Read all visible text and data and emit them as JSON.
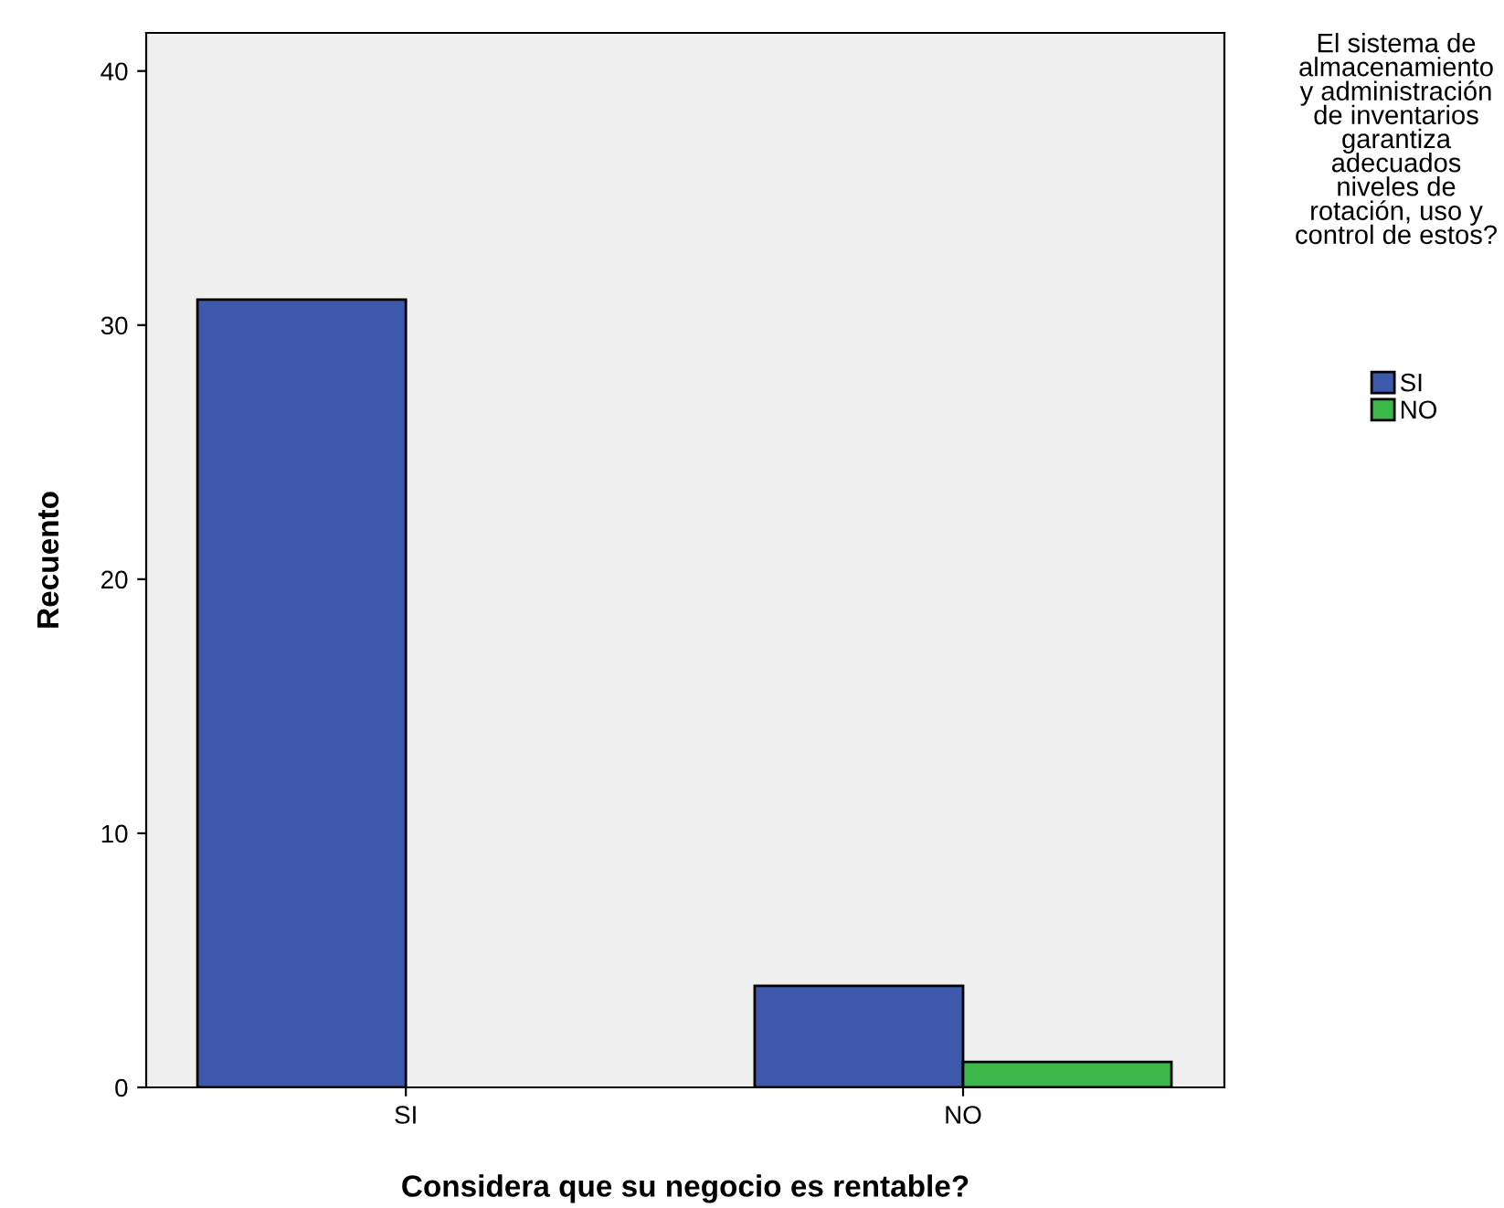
{
  "chart_data": {
    "type": "bar",
    "xlabel": "Considera que su negocio es rentable?",
    "ylabel": "Recuento",
    "legend_title": "El sistema de almacenamiento y administración de inventarios garantiza adecuados niveles de rotación, uso y control de estos?",
    "categories": [
      "SI",
      "NO"
    ],
    "series": [
      {
        "name": "SI",
        "color": "#3e58ac",
        "values": [
          31,
          4
        ]
      },
      {
        "name": "NO",
        "color": "#3cb84a",
        "values": [
          null,
          1
        ]
      }
    ],
    "ylim": [
      0,
      41.5
    ],
    "yticks": [
      0,
      10,
      20,
      30,
      40
    ],
    "grid": false,
    "legend": "right"
  }
}
